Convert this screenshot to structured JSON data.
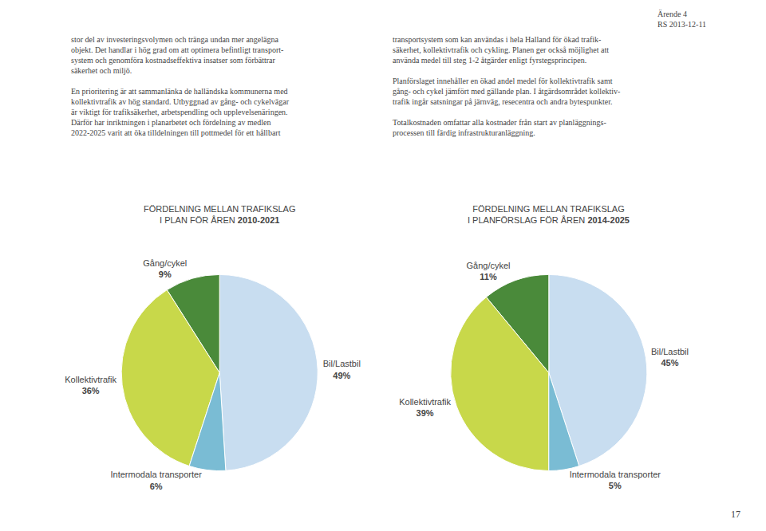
{
  "chart_data": [
    {
      "type": "pie",
      "title": "FÖRDELNING MELLAN TRAFIKSLAG",
      "subtitle": "I PLAN FÖR ÅREN 2010-2021",
      "categories": [
        "Bil/Lastbil",
        "Gång/cykel",
        "Kollektivtrafik",
        "Intermodala transporter"
      ],
      "values": [
        49,
        9,
        36,
        6
      ],
      "value_labels": [
        "49%",
        "9%",
        "36%",
        "6%"
      ],
      "colors": [
        "#c8ddf0",
        "#4a8a3a",
        "#c8d84a",
        "#7abcd4"
      ],
      "data_labels": true,
      "annotations": [
        "Ärende 4\nRS 2013-12-11",
        "stor del av investeringsvolymen och tränga undan mer angelägna\nobjekt. Det handlar i hög grad om att optimera befintligt transport-\nsystem och genomföra kostnadseffektiva insatser som förbättrar\nsäkerhet och miljö.\n\nEn prioritering är att sammanlänka de halländska kommunerna med\nkollektivtrafik av hög standard. Utbyggnad av gång- och cykelvägar\när viktigt för trafiksäkerhet, arbetspendling och upplevelsenäringen.\nDärför har inriktningen i planarbetet och fördelning av medlen\n2022-2025 varit att öka tilldelningen till pottmedel för ett hållbart",
        "transportsystem som kan användas i hela Halland för ökad trafik-\nsäkerhet, kollektivtrafik och cykling. Planen ger också möjlighet att\nanvända medel till steg 1-2 åtgärder enligt fyrstegsprincipen.\n\nPlanförslaget innehåller en ökad andel medel för kollektivtrafik samt\ngång- och cykel jämfört med gällande plan. I åtgärdsområdet kollektiv-\ntrafik ingår satsningar på järnväg, resecentra och andra bytespunkter.\n\nTotalkostnaden omfattar alla kostnader från start av planläggnings-\nprocessen till färdig infrastrukturanläggning.",
        "17"
      ]
    },
    {
      "type": "pie",
      "title": "FÖRDELNING MELLAN TRAFIKSLAG",
      "subtitle": "I PLANFÖRSLAG FÖR ÅREN 2014-2025",
      "categories": [
        "Bil/Lastbil",
        "Gång/cykel",
        "Kollektivtrafik",
        "Intermodala transporter"
      ],
      "values": [
        45,
        11,
        39,
        5
      ],
      "value_labels": [
        "45%",
        "11%",
        "39%",
        "5%"
      ],
      "colors": [
        "#c8ddf0",
        "#4a8a3a",
        "#c8d84a",
        "#7abcd4"
      ],
      "data_labels": true
    }
  ]
}
